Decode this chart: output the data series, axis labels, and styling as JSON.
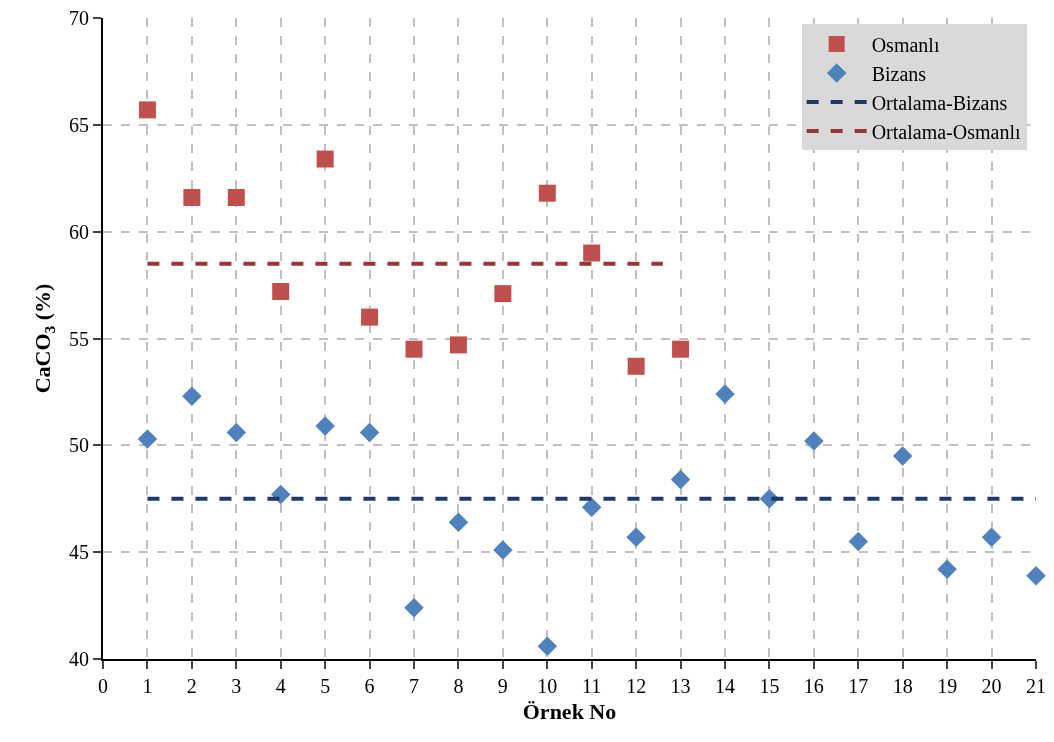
{
  "chart_data": {
    "type": "scatter",
    "xlabel": "Örnek No",
    "ylabel": "CaCO$_{3}$ (%)",
    "xlim": [
      0,
      21
    ],
    "xticks": [
      0,
      1,
      2,
      3,
      4,
      5,
      6,
      7,
      8,
      9,
      10,
      11,
      12,
      13,
      14,
      15,
      16,
      17,
      18,
      19,
      20,
      21
    ],
    "ylim": [
      40,
      70
    ],
    "yticks": [
      40,
      45,
      50,
      55,
      60,
      65,
      70
    ],
    "grid": true,
    "legend": "top right",
    "series": [
      {
        "name": "Osmanlı",
        "color": "#c0504d",
        "marker": "square",
        "x": [
          1,
          2,
          3,
          4,
          5,
          6,
          7,
          8,
          9,
          10,
          11,
          12,
          13
        ],
        "values": [
          65.7,
          61.6,
          61.6,
          57.2,
          63.4,
          56.0,
          54.5,
          54.7,
          57.1,
          61.8,
          59.0,
          53.7,
          54.5
        ]
      },
      {
        "name": "Bizans",
        "color": "#4f81bd",
        "marker": "diamond",
        "x": [
          1,
          2,
          3,
          4,
          5,
          6,
          7,
          8,
          9,
          10,
          11,
          12,
          13,
          14,
          15,
          16,
          17,
          18,
          19,
          20,
          21
        ],
        "values": [
          50.3,
          52.3,
          50.6,
          47.7,
          50.9,
          50.6,
          42.4,
          46.4,
          45.1,
          40.6,
          47.1,
          45.7,
          48.4,
          52.4,
          47.5,
          50.2,
          45.5,
          49.5,
          44.2,
          45.7,
          43.9
        ]
      },
      {
        "name": "Ortalama-Bizans",
        "type": "line",
        "color": "#1f3864",
        "line_style": "dashed",
        "x": [
          1,
          21
        ],
        "values": [
          47.5,
          47.5
        ]
      },
      {
        "name": "Ortalama-Osmanlı",
        "type": "line",
        "color": "#943634",
        "line_style": "dashed",
        "x": [
          1,
          12.6
        ],
        "values": [
          58.5,
          58.5
        ]
      }
    ]
  }
}
